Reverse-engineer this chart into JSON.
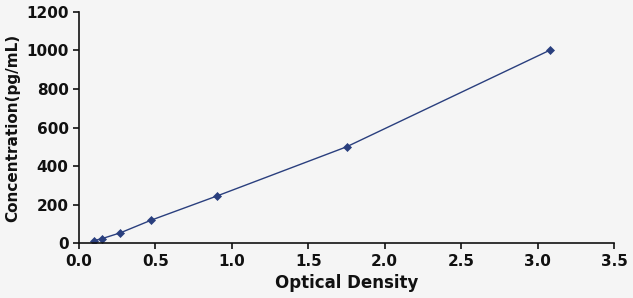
{
  "x_data": [
    0.1,
    0.15,
    0.27,
    0.47,
    0.9,
    1.75,
    3.08
  ],
  "y_data": [
    15,
    25,
    55,
    120,
    245,
    500,
    1000
  ],
  "line_color": "#2a3f7e",
  "marker_style": "D",
  "marker_size": 4,
  "marker_color": "#2a3f7e",
  "line_width": 1.0,
  "xlabel": "Optical Density",
  "ylabel": "Concentration(pg/mL)",
  "xlim": [
    0,
    3.5
  ],
  "ylim": [
    0,
    1200
  ],
  "xticks": [
    0.0,
    0.5,
    1.0,
    1.5,
    2.0,
    2.5,
    3.0,
    3.5
  ],
  "yticks": [
    0,
    200,
    400,
    600,
    800,
    1000,
    1200
  ],
  "xlabel_fontsize": 12,
  "ylabel_fontsize": 11,
  "tick_fontsize": 11,
  "background_color": "#f5f5f5",
  "spine_color": "#111111"
}
